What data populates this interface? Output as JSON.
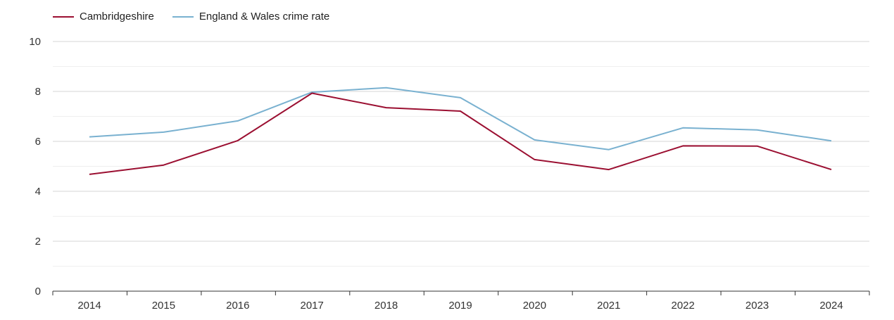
{
  "chart_data": {
    "type": "line",
    "title": "",
    "xlabel": "",
    "ylabel": "",
    "categories": [
      "2014",
      "2015",
      "2016",
      "2017",
      "2018",
      "2019",
      "2020",
      "2021",
      "2022",
      "2023",
      "2024"
    ],
    "ylim": [
      0,
      10
    ],
    "yticks": [
      0,
      2,
      4,
      6,
      8,
      10
    ],
    "grid": true,
    "legend_position": "top-left",
    "series": [
      {
        "name": "Cambridgeshire",
        "color": "#9b0f31",
        "values": [
          4.68,
          5.05,
          6.03,
          7.93,
          7.35,
          7.21,
          5.27,
          4.87,
          5.82,
          5.81,
          4.87
        ]
      },
      {
        "name": "England & Wales crime rate",
        "color": "#79b1d0",
        "values": [
          6.18,
          6.37,
          6.82,
          7.97,
          8.15,
          7.75,
          6.06,
          5.67,
          6.54,
          6.46,
          6.02
        ]
      }
    ]
  }
}
